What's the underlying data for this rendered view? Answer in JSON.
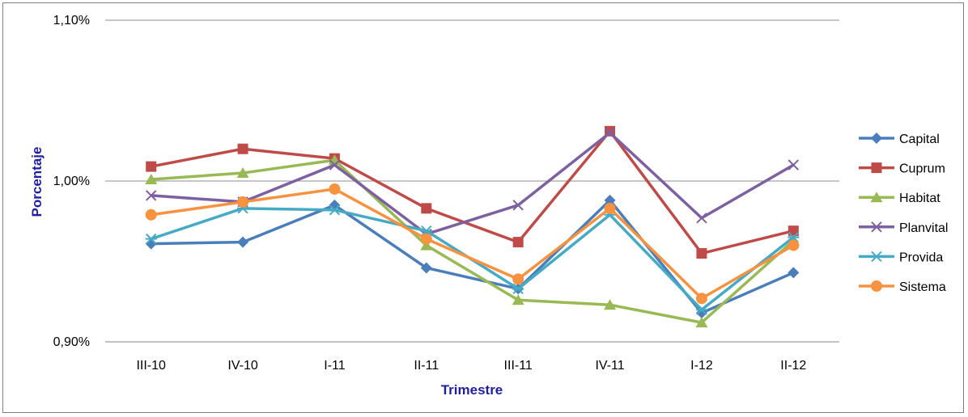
{
  "chart_data": {
    "type": "line",
    "title": "",
    "xlabel": "Trimestre",
    "ylabel": "Porcentaje",
    "ylim": [
      0.009,
      0.011
    ],
    "y_ticks": [
      "0,90%",
      "1,00%",
      "1,10%"
    ],
    "y_tick_values": [
      0.009,
      0.01,
      0.011
    ],
    "categories": [
      "III-10",
      "IV-10",
      "I-11",
      "II-11",
      "III-11",
      "IV-11",
      "I-12",
      "II-12"
    ],
    "grid": true,
    "legend_position": "right",
    "series": [
      {
        "name": "Capital",
        "color": "#4a7ebb",
        "marker": "diamond",
        "values": [
          0.00961,
          0.00962,
          0.00985,
          0.00946,
          0.00933,
          0.00988,
          0.00918,
          0.00943
        ]
      },
      {
        "name": "Cuprum",
        "color": "#be4b48",
        "marker": "square",
        "values": [
          0.01009,
          0.0102,
          0.01014,
          0.00983,
          0.00962,
          0.01031,
          0.00955,
          0.00969
        ]
      },
      {
        "name": "Habitat",
        "color": "#98b954",
        "marker": "triangle",
        "values": [
          0.01001,
          0.01005,
          0.01013,
          0.0096,
          0.00926,
          0.00923,
          0.00912,
          0.00963
        ]
      },
      {
        "name": "Planvital",
        "color": "#7d60a0",
        "marker": "x",
        "values": [
          0.00991,
          0.00987,
          0.0101,
          0.00967,
          0.00985,
          0.0103,
          0.00977,
          0.0101
        ]
      },
      {
        "name": "Provida",
        "color": "#46aac5",
        "marker": "star",
        "values": [
          0.00964,
          0.00983,
          0.00982,
          0.00969,
          0.00933,
          0.00979,
          0.0092,
          0.00965
        ]
      },
      {
        "name": "Sistema",
        "color": "#f69240",
        "marker": "circle",
        "values": [
          0.00979,
          0.00987,
          0.00995,
          0.00964,
          0.00939,
          0.00983,
          0.00927,
          0.0096
        ]
      }
    ]
  }
}
